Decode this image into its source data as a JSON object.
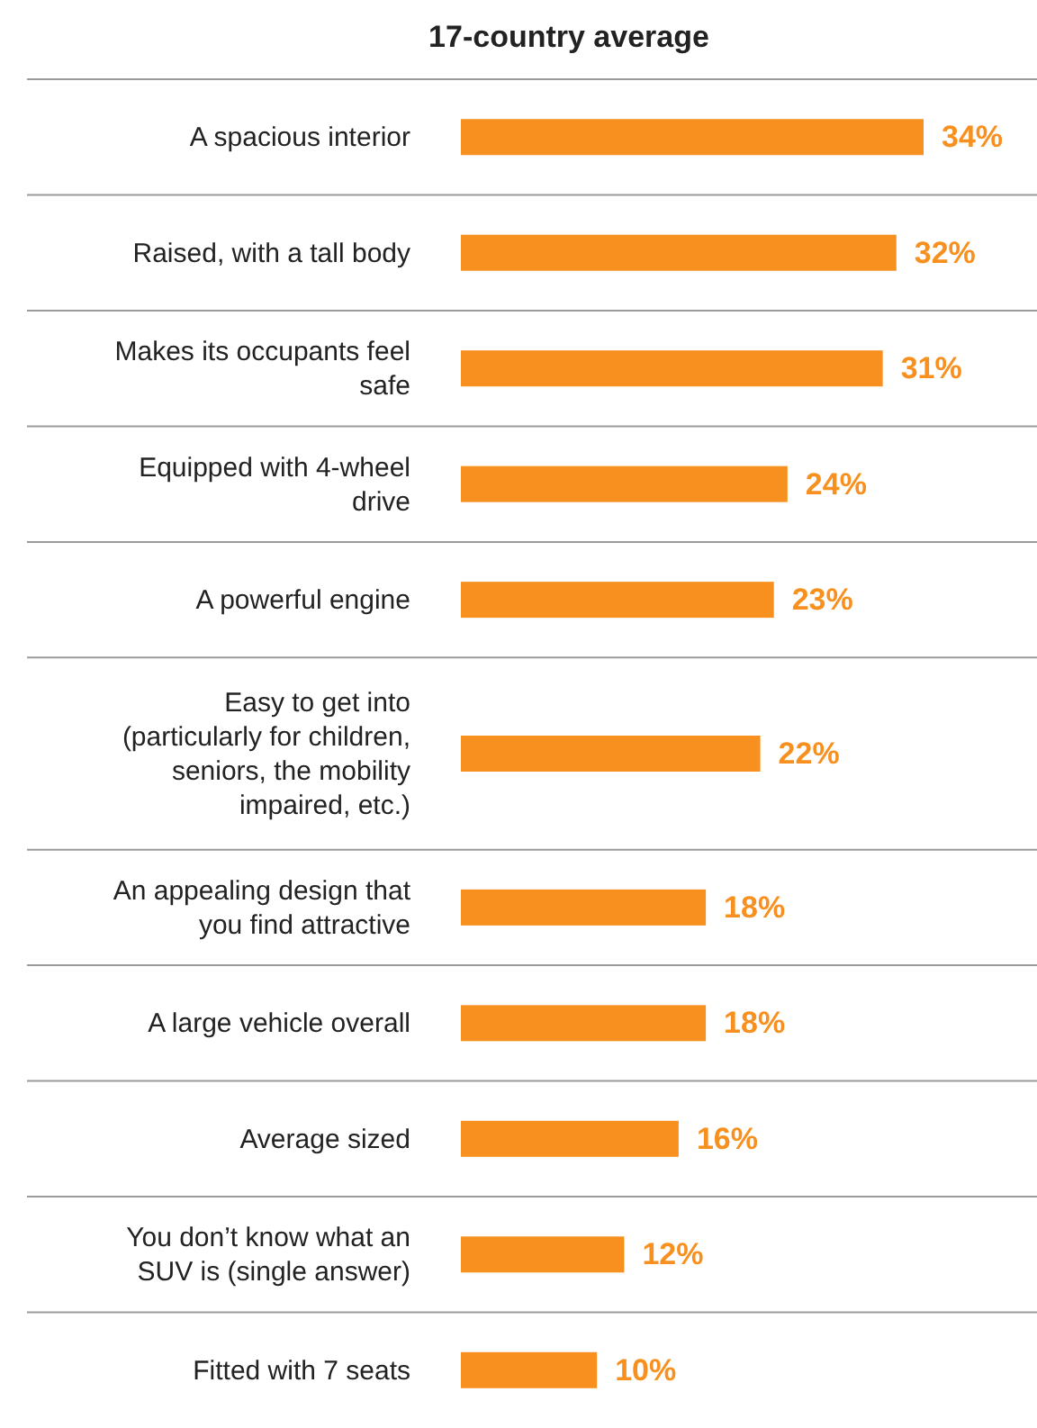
{
  "chart_data": {
    "type": "bar",
    "orientation": "horizontal",
    "title": "17-country average",
    "categories": [
      "A spacious interior",
      "Raised, with a tall body",
      "Makes its occupants feel safe",
      "Equipped with 4-wheel drive",
      "A powerful engine",
      "Easy to get into (particularly for children, seniors, the mobility impaired, etc.)",
      "An appealing design that you find attractive",
      "A large vehicle overall",
      "Average sized",
      "You don’t know what an SUV is (single answer)",
      "Fitted with 7 seats"
    ],
    "values": [
      34,
      32,
      31,
      24,
      23,
      22,
      18,
      18,
      16,
      12,
      10
    ],
    "value_labels": [
      "34%",
      "32%",
      "31%",
      "24%",
      "23%",
      "22%",
      "18%",
      "18%",
      "16%",
      "12%",
      "10%"
    ],
    "color": "#f7901e"
  }
}
